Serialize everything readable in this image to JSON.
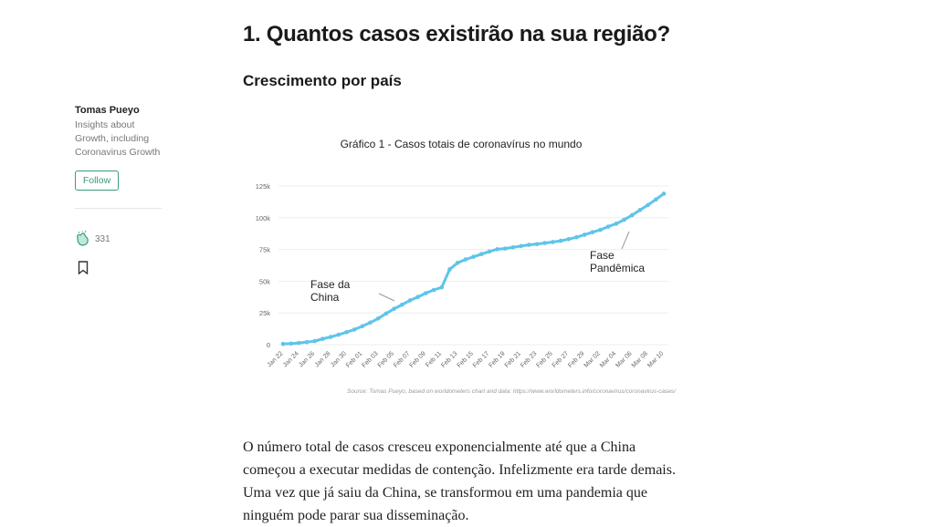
{
  "article": {
    "title": "1. Quantos casos existirão na sua região?",
    "subtitle": "Crescimento por país",
    "body": "O número total de casos cresceu exponencialmente até que a China começou a executar medidas de contenção. Infelizmente era tarde demais. Uma vez que já saiu da China, se transformou em uma pandemia que ninguém pode parar sua disseminação."
  },
  "sidebar": {
    "author": "Tomas Pueyo",
    "bio": "Insights about Growth, including Coronavirus Growth",
    "follow_label": "Follow",
    "claps": "331"
  },
  "colors": {
    "line": "#5ec4ea",
    "accent": "#3a9a7e"
  },
  "chart_data": {
    "type": "line",
    "title": "Gráfico 1 - Casos totais de coronavírus no mundo",
    "xlabel": "",
    "ylabel": "",
    "ylim": [
      0,
      125000
    ],
    "yticks": [
      0,
      25000,
      50000,
      75000,
      100000,
      125000
    ],
    "ytick_labels": [
      "0",
      "25k",
      "50k",
      "75k",
      "100k",
      "125k"
    ],
    "xtick_labels": [
      "Jan 22",
      "Jan 24",
      "Jan 26",
      "Jan 28",
      "Jan 30",
      "Feb 01",
      "Feb 03",
      "Feb 05",
      "Feb 07",
      "Feb 09",
      "Feb 11",
      "Feb 13",
      "Feb 15",
      "Feb 17",
      "Feb 19",
      "Feb 21",
      "Feb 23",
      "Feb 25",
      "Feb 27",
      "Feb 29",
      "Mar 02",
      "Mar 04",
      "Mar 06",
      "Mar 08",
      "Mar 10"
    ],
    "series": [
      {
        "name": "Casos totais",
        "values": [
          580,
          845,
          1317,
          2015,
          2800,
          4581,
          6058,
          7813,
          9823,
          11950,
          14553,
          17391,
          20630,
          24545,
          28266,
          31439,
          34876,
          37552,
          40553,
          43099,
          45134,
          59287,
          64438,
          67100,
          69197,
          71329,
          73332,
          75184,
          75700,
          76677,
          77673,
          78651,
          79205,
          80087,
          80828,
          81820,
          83112,
          84615,
          86604,
          88585,
          90443,
          93016,
          95314,
          98425,
          102050,
          106099,
          109991,
          114381,
          118948
        ]
      }
    ],
    "annotations": [
      {
        "text": "Fase da China",
        "x_index": 17
      },
      {
        "text": "Fase Pandêmica",
        "x_index": 44
      }
    ],
    "grid": true,
    "source": "Source: Tomas Pueyo, based on worldometers chart and data: https://www.worldometers.info/coronavirus/coronavirus-cases/"
  }
}
